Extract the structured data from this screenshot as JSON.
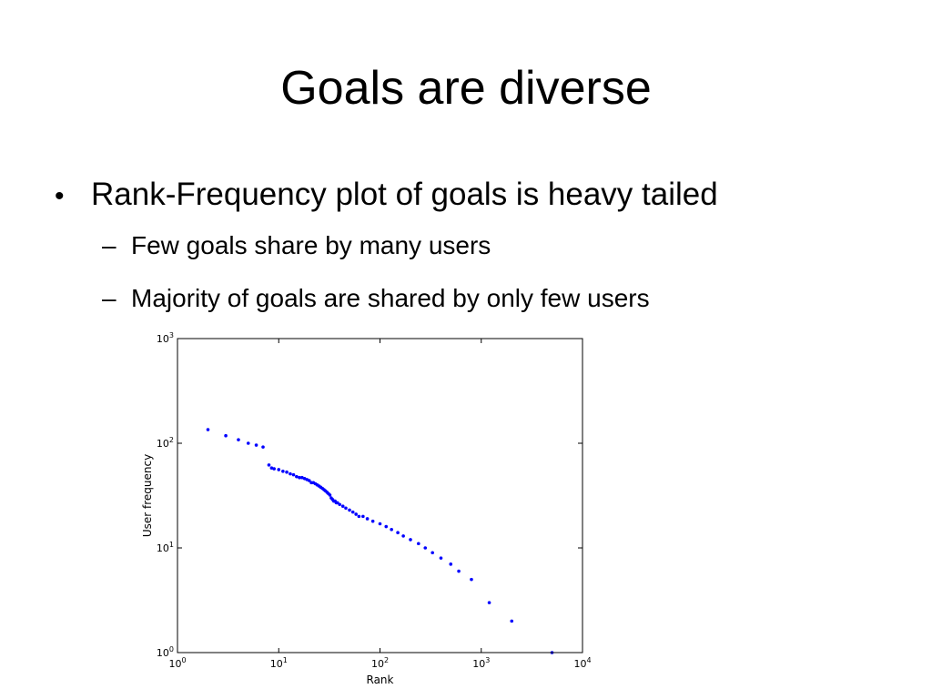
{
  "slide": {
    "title": "Goals are diverse",
    "bullet_glyph": "•",
    "dash_glyph": "–",
    "bullets": [
      "Rank-Frequency plot of goals is heavy tailed"
    ],
    "sub_bullets": [
      "Few goals share by many users",
      "Majority of goals are shared by only few users"
    ]
  },
  "chart_data": {
    "type": "scatter",
    "xlabel": "Rank",
    "ylabel": "User frequency",
    "xscale": "log",
    "yscale": "log",
    "xlim": [
      1,
      10000
    ],
    "ylim": [
      1,
      1000
    ],
    "xticks": [
      {
        "value": 1,
        "base": "10",
        "exp": "0"
      },
      {
        "value": 10,
        "base": "10",
        "exp": "1"
      },
      {
        "value": 100,
        "base": "10",
        "exp": "2"
      },
      {
        "value": 1000,
        "base": "10",
        "exp": "3"
      },
      {
        "value": 10000,
        "base": "10",
        "exp": "4"
      }
    ],
    "yticks": [
      {
        "value": 1,
        "base": "10",
        "exp": "0"
      },
      {
        "value": 10,
        "base": "10",
        "exp": "1"
      },
      {
        "value": 100,
        "base": "10",
        "exp": "2"
      },
      {
        "value": 1000,
        "base": "10",
        "exp": "3"
      }
    ],
    "grid": false,
    "marker_color": "#0000ff",
    "x": [
      2,
      3,
      4,
      5,
      6,
      7,
      8,
      8.5,
      9,
      10,
      11,
      12,
      13,
      14,
      15,
      16,
      17,
      18,
      19,
      20,
      21,
      22,
      23,
      24,
      25,
      26,
      27,
      28,
      29,
      30,
      31,
      32,
      33,
      34,
      35,
      36,
      37,
      38,
      40,
      43,
      46,
      50,
      54,
      58,
      62,
      68,
      75,
      85,
      100,
      115,
      130,
      150,
      170,
      200,
      240,
      280,
      330,
      400,
      500,
      600,
      800,
      1200,
      2000,
      5000
    ],
    "y": [
      135,
      118,
      108,
      100,
      96,
      92,
      62,
      58,
      57,
      56,
      54,
      53,
      51,
      50,
      48,
      47,
      47,
      46,
      45,
      44,
      42,
      42,
      41,
      40,
      39,
      38,
      37,
      36,
      35,
      34,
      33,
      32,
      30,
      29,
      28,
      28,
      27,
      27,
      26,
      25,
      24,
      23,
      22,
      21,
      20,
      20,
      19,
      18,
      17,
      16,
      15,
      14,
      13,
      12,
      11,
      10,
      9,
      8,
      7,
      6,
      5,
      3,
      2,
      1
    ]
  }
}
